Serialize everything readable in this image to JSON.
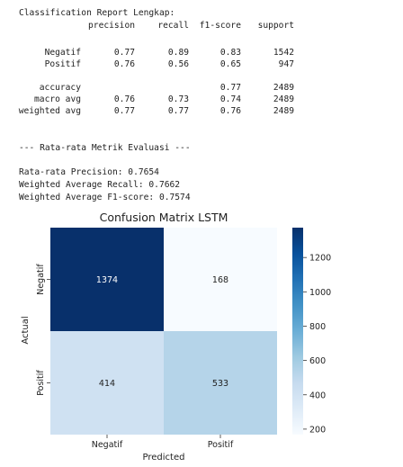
{
  "report": {
    "title": "Classification Report Lengkap:",
    "headers": [
      "precision",
      "recall",
      "f1-score",
      "support"
    ],
    "rows": [
      {
        "label": "Negatif",
        "precision": "0.77",
        "recall": "0.89",
        "f1": "0.83",
        "support": "1542"
      },
      {
        "label": "Positif",
        "precision": "0.76",
        "recall": "0.56",
        "f1": "0.65",
        "support": "947"
      },
      {
        "label": "accuracy",
        "precision": "",
        "recall": "",
        "f1": "0.77",
        "support": "2489"
      },
      {
        "label": "macro avg",
        "precision": "0.76",
        "recall": "0.73",
        "f1": "0.74",
        "support": "2489"
      },
      {
        "label": "weighted avg",
        "precision": "0.77",
        "recall": "0.77",
        "f1": "0.76",
        "support": "2489"
      }
    ]
  },
  "summary": {
    "heading": "--- Rata-rata Metrik Evaluasi ---",
    "precision_line": "Rata-rata Precision: 0.7654",
    "recall_line": "Weighted Average Recall: 0.7662",
    "f1_line": "Weighted Average F1-score: 0.7574"
  },
  "chart_data": {
    "type": "heatmap",
    "title": "Confusion Matrix LSTM",
    "xlabel": "Predicted",
    "ylabel": "Actual",
    "x_categories": [
      "Negatif",
      "Positif"
    ],
    "y_categories": [
      "Negatif",
      "Positif"
    ],
    "values": [
      [
        1374,
        168
      ],
      [
        414,
        533
      ]
    ],
    "colormap": "Blues",
    "colorbar": {
      "min": 168,
      "max": 1374,
      "ticks": [
        200,
        400,
        600,
        800,
        1000,
        1200
      ]
    }
  }
}
